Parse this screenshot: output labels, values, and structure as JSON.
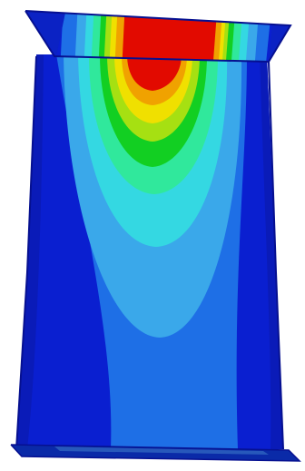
{
  "scene": {
    "background_color": "#ffffff",
    "object": "fea-contour-plot",
    "colormap": {
      "name": "rainbow",
      "bands": [
        "#0a1fd0",
        "#1e5fe0",
        "#3aa0e8",
        "#30d8e0",
        "#2ee89a",
        "#10d020",
        "#a8e010",
        "#f0e000",
        "#f0a000",
        "#f05000",
        "#e00000"
      ]
    },
    "edge_color": "#061090"
  }
}
